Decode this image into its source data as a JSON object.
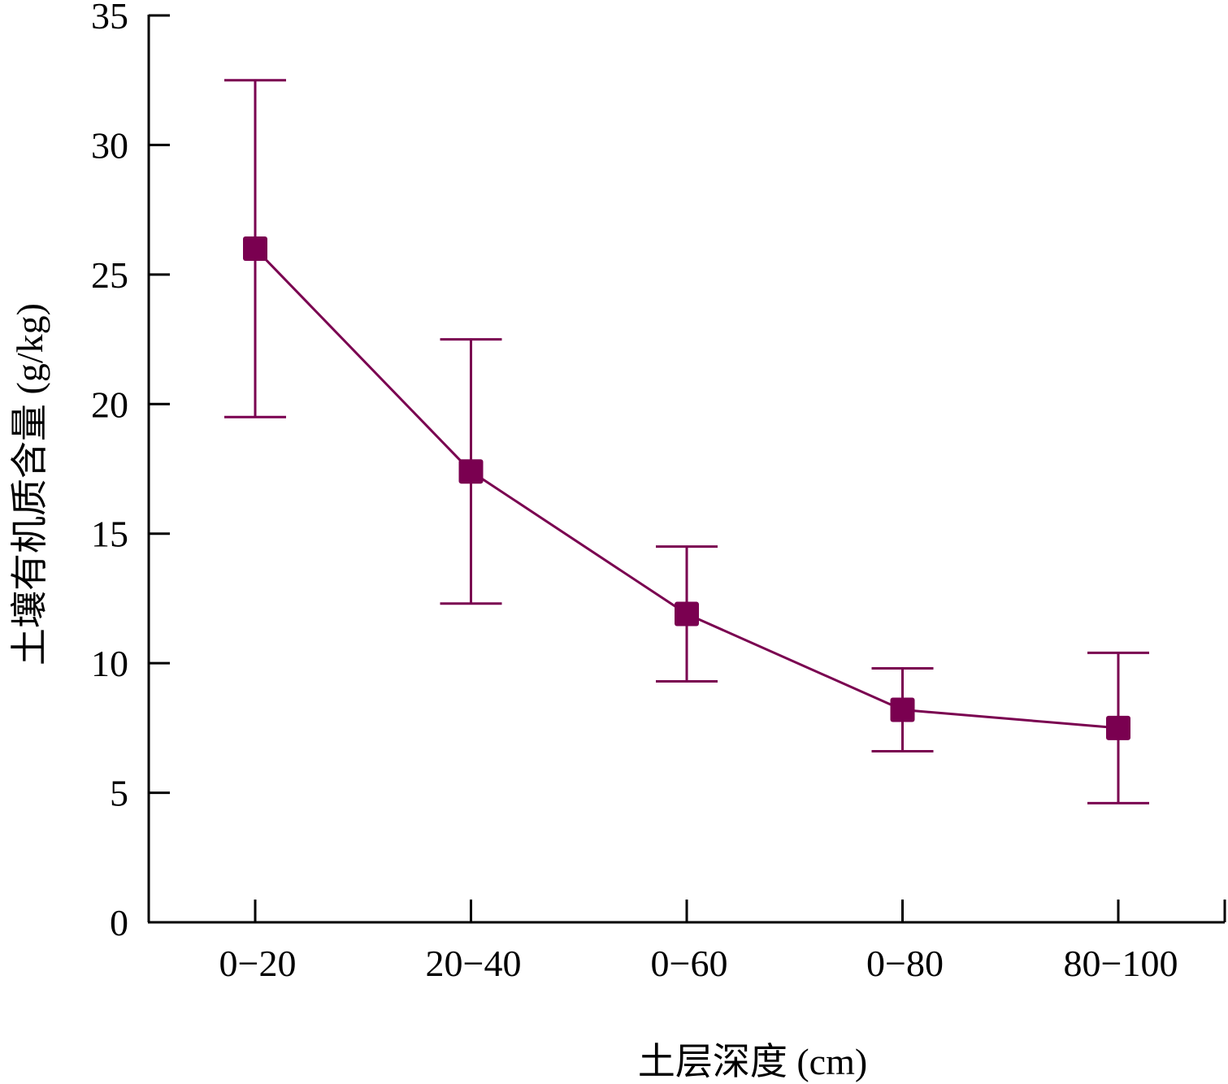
{
  "chart_data": {
    "type": "line",
    "xlabel": "土层深度 (cm)",
    "ylabel": "土壤有机质含量 (g/kg)",
    "categories": [
      "0−20",
      "20−40",
      "0−60",
      "0−80",
      "80−100"
    ],
    "series": [
      {
        "values": [
          26.0,
          17.4,
          11.9,
          8.2,
          7.5
        ],
        "error_low": [
          19.5,
          12.3,
          9.3,
          6.6,
          4.6
        ],
        "error_high": [
          32.5,
          22.5,
          14.5,
          9.8,
          10.4
        ],
        "color": "#7a0050",
        "marker": "square"
      }
    ],
    "ylim": [
      0,
      35
    ],
    "yticks": [
      0,
      5,
      10,
      15,
      20,
      25,
      30,
      35
    ],
    "grid": false,
    "legend": "none"
  }
}
